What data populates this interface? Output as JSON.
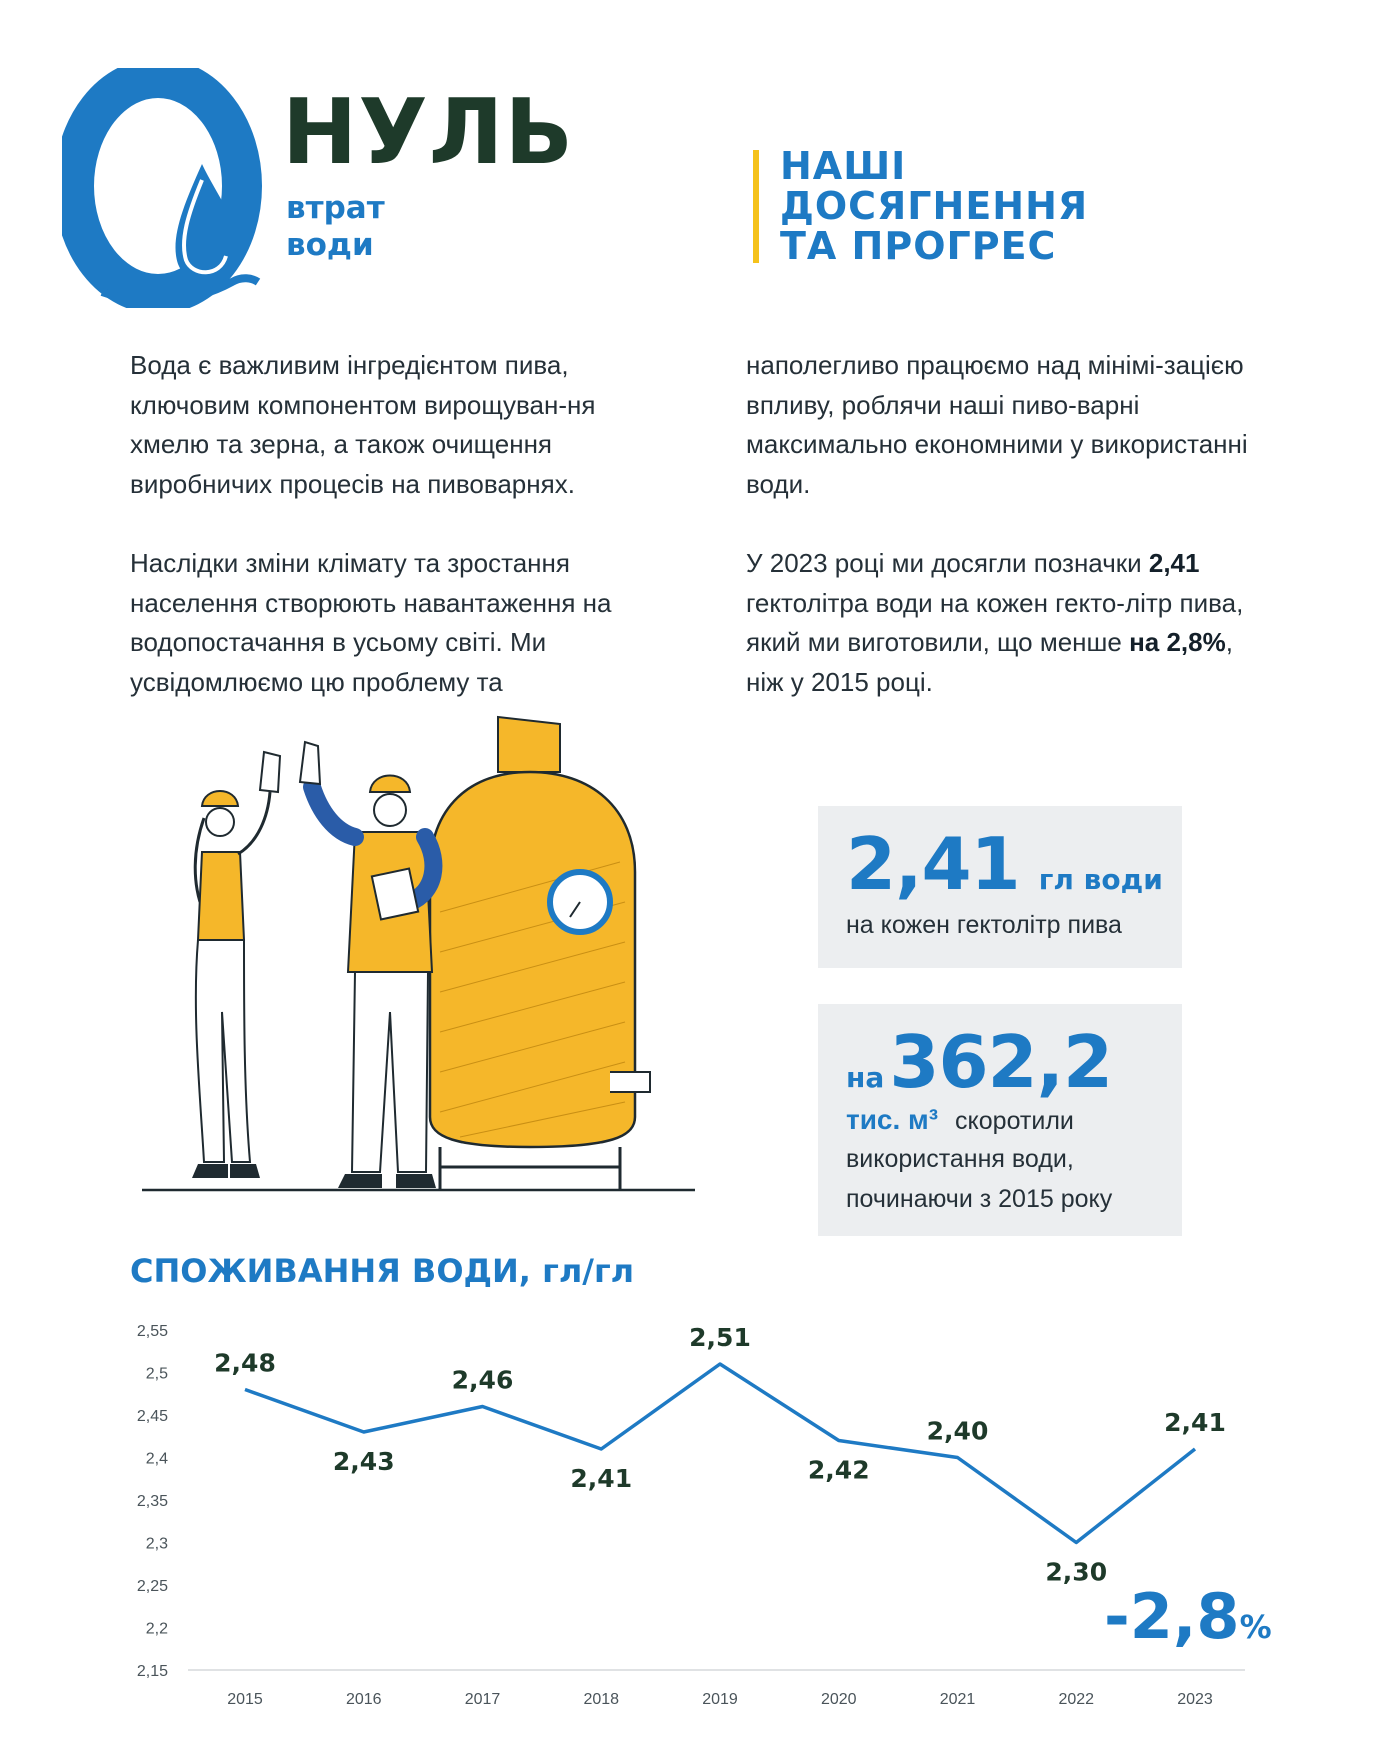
{
  "header": {
    "logo_numeral": "0",
    "logo_word": "НУЛЬ",
    "logo_sub_line1": "втрат",
    "logo_sub_line2": "води",
    "section_title_line1": "НАШІ",
    "section_title_line2": "ДОСЯГНЕННЯ",
    "section_title_line3": "ТА ПРОГРЕС"
  },
  "body": {
    "left": {
      "p1": "Вода є важливим інгредієнтом пива, ключовим компонентом вирощуван-ня хмелю та зерна, а також очищення виробничих процесів на пивоварнях.",
      "p2": "Наслідки зміни клімату та зростання населення створюють навантаження на водопостачання в усьому світі. Ми усвідомлюємо цю проблему та"
    },
    "right": {
      "p1": "наполегливо працюємо над мінімі-зацією впливу, роблячи наші пиво-варні максимально економними у використанні води.",
      "p2_before": "У 2023 році ми досягли позначки ",
      "p2_bold1": "2,41",
      "p2_mid": " гектолітра води на кожен гекто-літр пива, який ми виготовили, що менше ",
      "p2_bold2": "на 2,8%",
      "p2_after": ", ніж у 2015 році."
    }
  },
  "stats": {
    "stat1": {
      "value": "2,41",
      "unit": "гл води",
      "caption": "на кожен гектолітр пива"
    },
    "stat2": {
      "prefix": "на",
      "value": "362,2",
      "unit": "тис. м³",
      "line1_rest": "скоротили",
      "line2": "використання води,",
      "line3": "починаючи з 2015 року"
    }
  },
  "colors": {
    "brand_blue": "#1e7ac4",
    "dark_green": "#1e3a2a",
    "accent_yellow": "#f5c21b",
    "stat_box_bg": "#eceef0"
  },
  "chart_data": {
    "type": "line",
    "title": "СПОЖИВАННЯ ВОДИ, гл/гл",
    "categories": [
      "2015",
      "2016",
      "2017",
      "2018",
      "2019",
      "2020",
      "2021",
      "2022",
      "2023"
    ],
    "values": [
      2.48,
      2.43,
      2.46,
      2.41,
      2.51,
      2.42,
      2.4,
      2.3,
      2.41
    ],
    "data_labels": [
      "2,48",
      "2,43",
      "2,46",
      "2,41",
      "2,51",
      "2,42",
      "2,40",
      "2,30",
      "2,41"
    ],
    "label_positions": [
      "above",
      "below",
      "above",
      "below",
      "above",
      "below",
      "above",
      "below",
      "above"
    ],
    "ylim": [
      2.15,
      2.55
    ],
    "yticks": [
      "2,15",
      "2,2",
      "2,25",
      "2,3",
      "2,35",
      "2,4",
      "2,45",
      "2,5",
      "2,55"
    ],
    "ytick_values": [
      2.15,
      2.2,
      2.25,
      2.3,
      2.35,
      2.4,
      2.45,
      2.5,
      2.55
    ],
    "grid": false,
    "line_color": "#1e7ac4",
    "annotation": {
      "value": "-2,8",
      "suffix": "%"
    }
  }
}
